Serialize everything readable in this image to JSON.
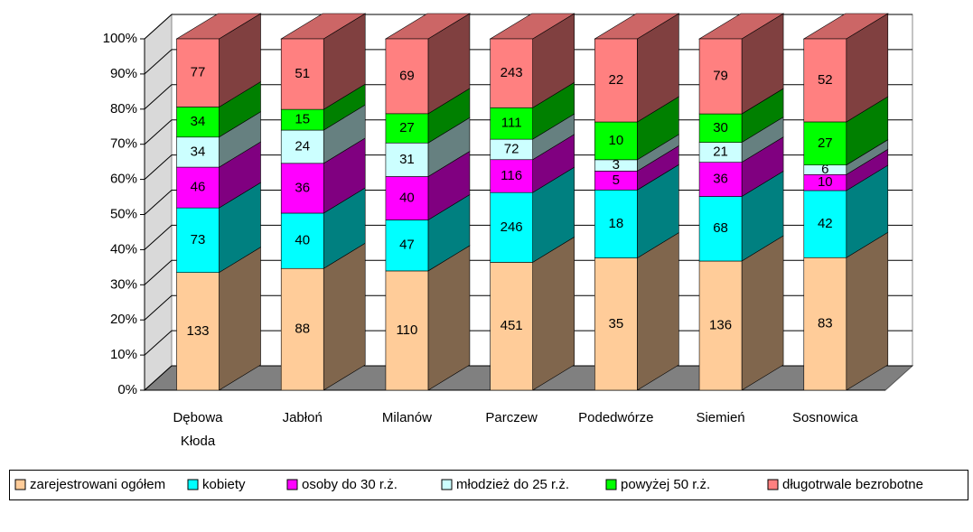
{
  "chart_data": {
    "type": "bar",
    "stacked": "percent",
    "categories": [
      "Dębowa Kłoda",
      "Jabłoń",
      "Milanów",
      "Parczew",
      "Podedwórze",
      "Siemień",
      "Sosnowica"
    ],
    "series": [
      {
        "name": "zarejestrowani ogółem",
        "color": "#FFCC99",
        "values": [
          133,
          88,
          110,
          451,
          35,
          136,
          83
        ]
      },
      {
        "name": "kobiety",
        "color": "#00FFFF",
        "values": [
          73,
          40,
          47,
          246,
          18,
          68,
          42
        ]
      },
      {
        "name": "osoby do 30 r.ż.",
        "color": "#FF00FF",
        "values": [
          46,
          36,
          40,
          116,
          5,
          36,
          10
        ]
      },
      {
        "name": "młodzież do 25 r.ż.",
        "color": "#CCFFFF",
        "values": [
          34,
          24,
          31,
          72,
          3,
          21,
          6
        ]
      },
      {
        "name": "powyżej 50 r.ż.",
        "color": "#00FF00",
        "values": [
          34,
          15,
          27,
          111,
          10,
          30,
          27
        ]
      },
      {
        "name": "długotrwale bezrobotne",
        "color": "#FF8080",
        "values": [
          77,
          51,
          69,
          243,
          22,
          79,
          52
        ]
      }
    ],
    "ylim": [
      0,
      100
    ],
    "yticks": [
      {
        "value": 0,
        "label": "0%"
      },
      {
        "value": 10,
        "label": "10%"
      },
      {
        "value": 20,
        "label": "20%"
      },
      {
        "value": 30,
        "label": "30%"
      },
      {
        "value": 40,
        "label": "40%"
      },
      {
        "value": 50,
        "label": "50%"
      },
      {
        "value": 60,
        "label": "60%"
      },
      {
        "value": 70,
        "label": "70%"
      },
      {
        "value": 80,
        "label": "80%"
      },
      {
        "value": 90,
        "label": "90%"
      },
      {
        "value": 100,
        "label": "100%"
      }
    ],
    "grid": true,
    "legend": "bottom"
  }
}
